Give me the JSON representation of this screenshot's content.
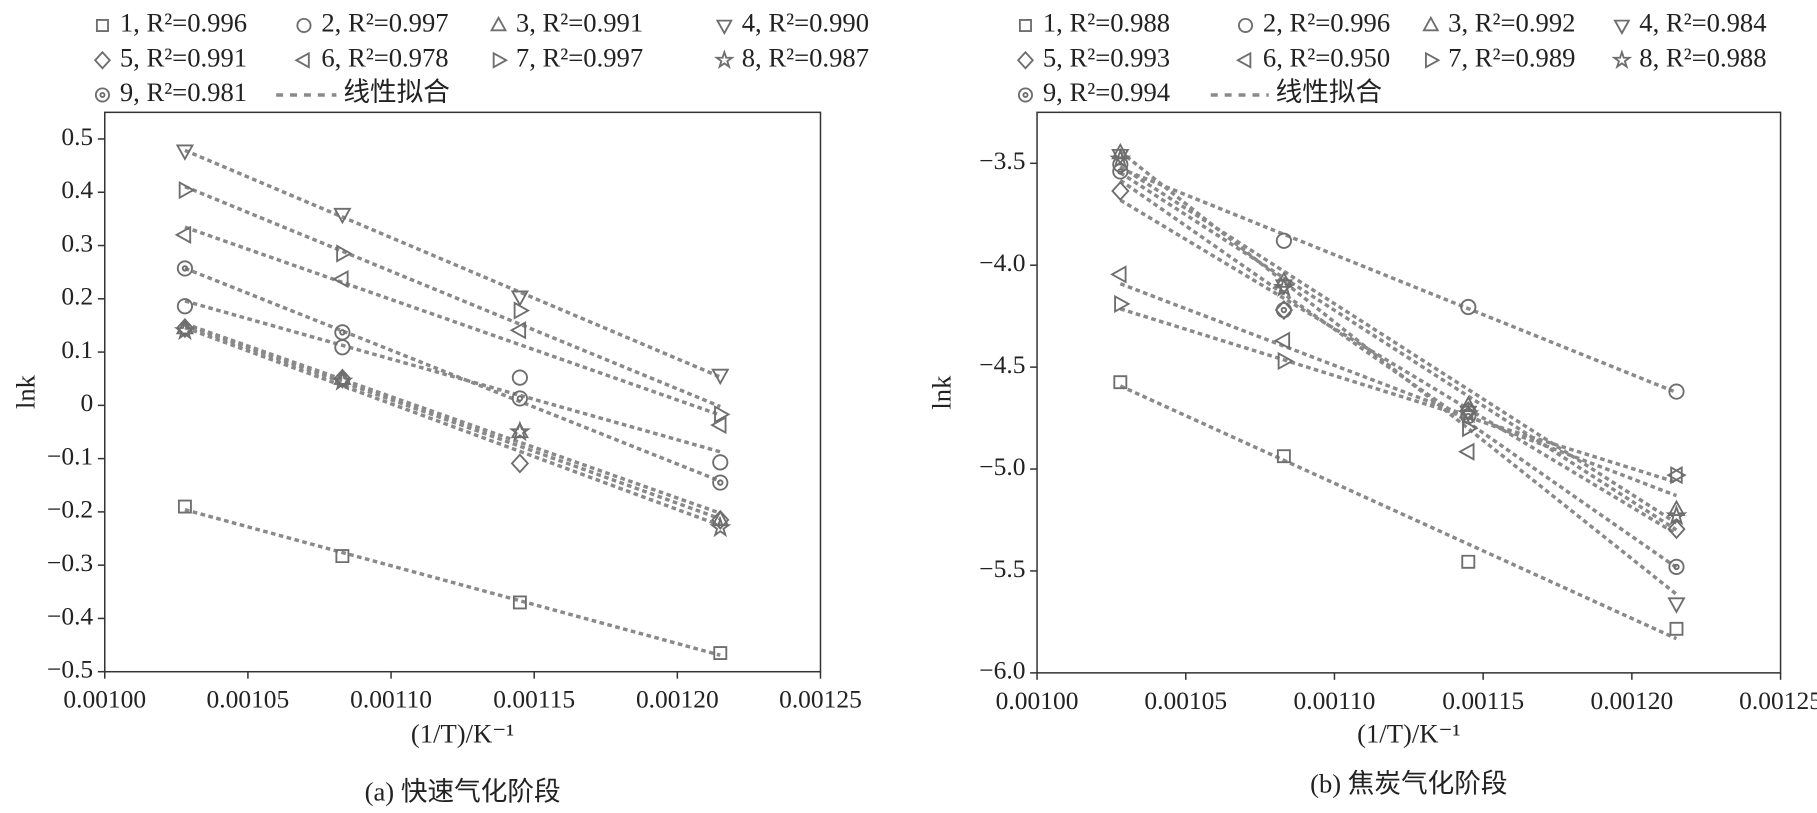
{
  "chart_data": [
    {
      "type": "scatter",
      "caption": "(a) 快速气化阶段",
      "x_label": "(1/T)/K⁻¹",
      "y_label": "lnk",
      "fit_label": "线性拟合",
      "fit_color": "#8a8a8a",
      "x": [
        0.001028,
        0.001083,
        0.001145,
        0.001215
      ],
      "xlim": [
        0.001,
        0.00125
      ],
      "xticks": [
        {
          "value": 0.001,
          "label": "0.00100"
        },
        {
          "value": 0.00105,
          "label": "0.00105"
        },
        {
          "value": 0.0011,
          "label": "0.00110"
        },
        {
          "value": 0.00115,
          "label": "0.00115"
        },
        {
          "value": 0.0012,
          "label": "0.00120"
        },
        {
          "value": 0.00125,
          "label": "0.00125"
        }
      ],
      "ylim": [
        -0.5,
        0.55
      ],
      "yticks": [
        {
          "value": -0.5,
          "label": "−0.5"
        },
        {
          "value": -0.4,
          "label": "−0.4"
        },
        {
          "value": -0.3,
          "label": "−0.3"
        },
        {
          "value": -0.2,
          "label": "−0.2"
        },
        {
          "value": -0.1,
          "label": "−0.1"
        },
        0,
        0.1,
        0.2,
        0.3,
        0.4,
        0.5
      ],
      "series": [
        {
          "name": "1, R²=0.996",
          "marker": "square",
          "color": "#6e6e6e",
          "values": [
            -0.19,
            -0.283,
            -0.37,
            -0.465
          ]
        },
        {
          "name": "2, R²=0.997",
          "marker": "circle",
          "color": "#6e6e6e",
          "values": [
            0.186,
            0.109,
            0.052,
            -0.107
          ]
        },
        {
          "name": "3, R²=0.991",
          "marker": "triangle-up",
          "color": "#6e6e6e",
          "values": [
            0.145,
            0.05,
            -0.05,
            -0.215
          ]
        },
        {
          "name": "4, R²=0.990",
          "marker": "triangle-down",
          "color": "#6e6e6e",
          "values": [
            0.478,
            0.359,
            0.204,
            0.057
          ]
        },
        {
          "name": "5, R²=0.991",
          "marker": "diamond",
          "color": "#6e6e6e",
          "values": [
            0.145,
            0.05,
            -0.109,
            -0.215
          ]
        },
        {
          "name": "6, R²=0.978",
          "marker": "triangle-left",
          "color": "#6e6e6e",
          "values": [
            0.32,
            0.237,
            0.141,
            -0.037
          ]
        },
        {
          "name": "7, R²=0.997",
          "marker": "triangle-right",
          "color": "#6e6e6e",
          "values": [
            0.404,
            0.285,
            0.178,
            -0.017
          ]
        },
        {
          "name": "8, R²=0.987",
          "marker": "star",
          "color": "#6e6e6e",
          "values": [
            0.14,
            0.045,
            -0.05,
            -0.23
          ]
        },
        {
          "name": "9, R²=0.981",
          "marker": "circle-dot",
          "color": "#6e6e6e",
          "values": [
            0.257,
            0.137,
            0.013,
            -0.145
          ]
        }
      ]
    },
    {
      "type": "scatter",
      "caption": "(b) 焦炭气化阶段",
      "x_label": "(1/T)/K⁻¹",
      "y_label": "lnk",
      "fit_label": "线性拟合",
      "fit_color": "#8a8a8a",
      "x": [
        0.001028,
        0.001083,
        0.001145,
        0.001215
      ],
      "xlim": [
        0.001,
        0.00125
      ],
      "xticks": [
        {
          "value": 0.001,
          "label": "0.00100"
        },
        {
          "value": 0.00105,
          "label": "0.00105"
        },
        {
          "value": 0.0011,
          "label": "0.00110"
        },
        {
          "value": 0.00115,
          "label": "0.00115"
        },
        {
          "value": 0.0012,
          "label": "0.00120"
        },
        {
          "value": 0.00125,
          "label": "0.00125"
        }
      ],
      "ylim": [
        -6.0,
        -3.25
      ],
      "yticks": [
        {
          "value": -6.0,
          "label": "−6.0"
        },
        {
          "value": -5.5,
          "label": "−5.5"
        },
        {
          "value": -5.0,
          "label": "−5.0"
        },
        {
          "value": -4.5,
          "label": "−4.5"
        },
        {
          "value": -4.0,
          "label": "−4.0"
        },
        {
          "value": -3.5,
          "label": "−3.5"
        }
      ],
      "series": [
        {
          "name": "1, R²=0.988",
          "marker": "square",
          "color": "#6e6e6e",
          "values": [
            -4.574,
            -4.937,
            -5.455,
            -5.784
          ]
        },
        {
          "name": "2, R²=0.996",
          "marker": "circle",
          "color": "#6e6e6e",
          "values": [
            -3.506,
            -3.88,
            -4.205,
            -4.62
          ]
        },
        {
          "name": "3, R²=0.992",
          "marker": "triangle-up",
          "color": "#6e6e6e",
          "values": [
            -3.45,
            -4.08,
            -4.69,
            -5.2
          ]
        },
        {
          "name": "4, R²=0.984",
          "marker": "triangle-down",
          "color": "#6e6e6e",
          "values": [
            -3.46,
            -4.1,
            -4.72,
            -5.66
          ]
        },
        {
          "name": "5, R²=0.993",
          "marker": "diamond",
          "color": "#6e6e6e",
          "values": [
            -3.636,
            -4.22,
            -4.716,
            -5.295
          ]
        },
        {
          "name": "6, R²=0.950",
          "marker": "triangle-left",
          "color": "#6e6e6e",
          "values": [
            -4.045,
            -4.37,
            -4.915,
            -5.03
          ]
        },
        {
          "name": "7, R²=0.989",
          "marker": "triangle-right",
          "color": "#6e6e6e",
          "values": [
            -4.19,
            -4.47,
            -4.8,
            -5.03
          ]
        },
        {
          "name": "8, R²=0.988",
          "marker": "star",
          "color": "#6e6e6e",
          "values": [
            -3.48,
            -4.11,
            -4.73,
            -5.23
          ]
        },
        {
          "name": "9, R²=0.994",
          "marker": "circle-dot",
          "color": "#6e6e6e",
          "values": [
            -3.54,
            -4.22,
            -4.74,
            -5.48
          ]
        }
      ]
    }
  ]
}
